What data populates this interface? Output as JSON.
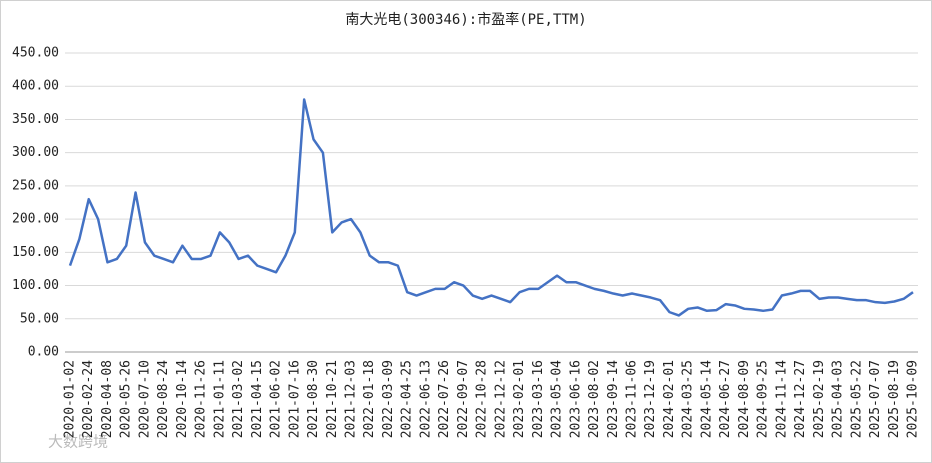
{
  "chart_data": {
    "type": "line",
    "title": "南大光电(300346):市盈率(PE,TTM)",
    "watermark": "大数跨境",
    "categories": [
      "2020-01-02",
      null,
      "2020-02-24",
      null,
      "2020-04-08",
      null,
      "2020-05-26",
      null,
      "2020-07-10",
      null,
      "2020-08-24",
      null,
      "2020-10-14",
      null,
      "2020-11-26",
      null,
      "2021-01-11",
      null,
      "2021-03-02",
      null,
      "2021-04-15",
      null,
      "2021-06-02",
      null,
      "2021-07-16",
      null,
      "2021-08-30",
      null,
      "2021-10-21",
      null,
      "2021-12-03",
      null,
      "2022-01-18",
      null,
      "2022-03-09",
      null,
      "2022-04-25",
      null,
      "2022-06-13",
      null,
      "2022-07-26",
      null,
      "2022-09-07",
      null,
      "2022-10-28",
      null,
      "2022-12-12",
      null,
      "2023-02-01",
      null,
      "2023-03-16",
      null,
      "2023-05-04",
      null,
      "2023-06-16",
      null,
      "2023-08-02",
      null,
      "2023-09-14",
      null,
      "2023-11-06",
      null,
      "2023-12-19",
      null,
      "2024-02-01",
      null,
      "2024-03-25",
      null,
      "2024-05-14",
      null,
      "2024-06-27",
      null,
      "2024-08-09",
      null,
      "2024-09-25",
      null,
      "2024-11-14",
      null,
      "2024-12-27",
      null,
      "2025-02-19",
      null,
      "2025-04-03",
      null,
      "2025-05-22",
      null,
      "2025-07-07",
      null,
      "2025-08-19",
      null,
      "2025-10-09"
    ],
    "series": [
      {
        "name": "市盈率",
        "color": "#4472c4",
        "values": [
          130,
          170,
          230,
          200,
          135,
          140,
          160,
          240,
          165,
          145,
          140,
          135,
          160,
          140,
          140,
          145,
          180,
          165,
          140,
          145,
          130,
          125,
          120,
          145,
          180,
          380,
          320,
          300,
          180,
          195,
          200,
          180,
          145,
          135,
          135,
          130,
          90,
          85,
          90,
          95,
          95,
          105,
          100,
          85,
          80,
          85,
          80,
          75,
          90,
          95,
          95,
          105,
          115,
          105,
          105,
          100,
          95,
          92,
          88,
          85,
          88,
          85,
          82,
          78,
          60,
          55,
          65,
          67,
          62,
          63,
          72,
          70,
          65,
          64,
          62,
          64,
          85,
          88,
          92,
          92,
          80,
          82,
          82,
          80,
          78,
          78,
          75,
          74,
          76,
          80,
          90
        ]
      }
    ],
    "ylim": [
      0,
      450
    ],
    "yticks": [
      {
        "value": 0,
        "label": "0.00"
      },
      {
        "value": 50,
        "label": "50.00"
      },
      {
        "value": 100,
        "label": "100.00"
      },
      {
        "value": 150,
        "label": "150.00"
      },
      {
        "value": 200,
        "label": "200.00"
      },
      {
        "value": 250,
        "label": "250.00"
      },
      {
        "value": 300,
        "label": "300.00"
      },
      {
        "value": 350,
        "label": "350.00"
      },
      {
        "value": 400,
        "label": "400.00"
      },
      {
        "value": 450,
        "label": "450.00"
      }
    ],
    "grid": true
  }
}
